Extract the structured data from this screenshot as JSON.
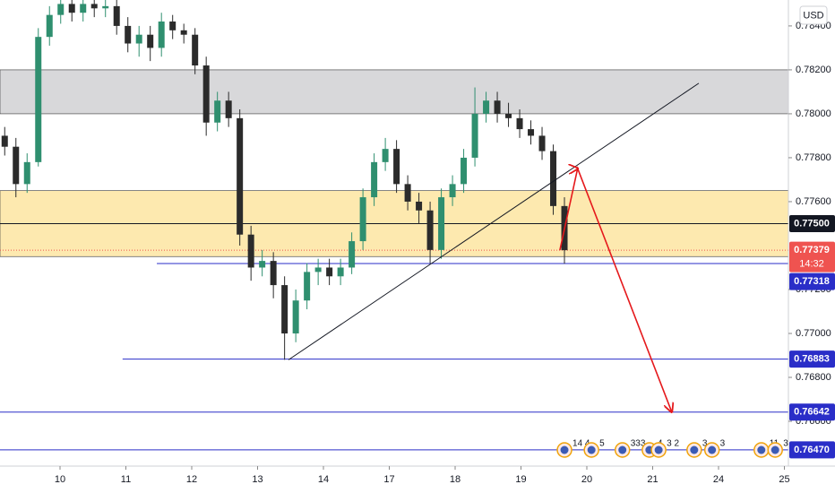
{
  "chart_data": {
    "type": "candlestick",
    "currency": "USD",
    "up_color": "#2f8f6f",
    "down_color": "#2b2b2b",
    "xlim": [
      -0.9116,
      11.061
    ],
    "ylim": [
      0.76396,
      0.78518
    ],
    "xticks": [
      {
        "value": 0,
        "label": "10"
      },
      {
        "value": 1,
        "label": "11"
      },
      {
        "value": 2,
        "label": "12"
      },
      {
        "value": 3,
        "label": "13"
      },
      {
        "value": 4,
        "label": "14"
      },
      {
        "value": 5,
        "label": "17"
      },
      {
        "value": 6,
        "label": "18"
      },
      {
        "value": 7,
        "label": "19"
      },
      {
        "value": 8,
        "label": "20"
      },
      {
        "value": 9,
        "label": "21"
      },
      {
        "value": 10,
        "label": "24"
      },
      {
        "value": 11,
        "label": "25"
      }
    ],
    "yticks": [
      {
        "value": 0.784,
        "label": "0.78400"
      },
      {
        "value": 0.782,
        "label": "0.78200"
      },
      {
        "value": 0.78,
        "label": "0.78000"
      },
      {
        "value": 0.778,
        "label": "0.77800"
      },
      {
        "value": 0.776,
        "label": "0.77600"
      },
      {
        "value": 0.772,
        "label": "0.77200"
      },
      {
        "value": 0.77,
        "label": "0.77000"
      },
      {
        "value": 0.768,
        "label": "0.76800"
      },
      {
        "value": 0.766,
        "label": "0.76600"
      }
    ],
    "x": [
      -0.84,
      -0.67,
      -0.5,
      -0.33,
      -0.16,
      0.01,
      0.18,
      0.35,
      0.52,
      0.69,
      0.86,
      1.03,
      1.2,
      1.37,
      1.54,
      1.71,
      1.88,
      2.05,
      2.22,
      2.39,
      2.56,
      2.73,
      2.9,
      3.07,
      3.24,
      3.41,
      3.58,
      3.75,
      3.92,
      4.09,
      4.26,
      4.43,
      4.6,
      4.77,
      4.94,
      5.11,
      5.28,
      5.45,
      5.62,
      5.79,
      5.96,
      6.13,
      6.3,
      6.47,
      6.64,
      6.81,
      6.98,
      7.15,
      7.32,
      7.49,
      7.66
    ],
    "open": [
      0.779,
      0.7785,
      0.7768,
      0.7778,
      0.7835,
      0.7845,
      0.785,
      0.7846,
      0.785,
      0.7848,
      0.7849,
      0.784,
      0.7832,
      0.7836,
      0.783,
      0.7842,
      0.7838,
      0.7836,
      0.7822,
      0.7796,
      0.7806,
      0.7798,
      0.7745,
      0.773,
      0.7733,
      0.7722,
      0.77,
      0.7715,
      0.7728,
      0.773,
      0.7726,
      0.773,
      0.7742,
      0.7762,
      0.7778,
      0.7784,
      0.7768,
      0.776,
      0.7756,
      0.7738,
      0.7762,
      0.7768,
      0.778,
      0.78,
      0.7806,
      0.78,
      0.7798,
      0.7793,
      0.779,
      0.7783,
      0.7758
    ],
    "high": [
      0.7794,
      0.7789,
      0.7782,
      0.7839,
      0.7849,
      0.7854,
      0.7854,
      0.7854,
      0.7853,
      0.7852,
      0.7852,
      0.7844,
      0.784,
      0.784,
      0.7846,
      0.7845,
      0.7841,
      0.7839,
      0.7826,
      0.781,
      0.781,
      0.7802,
      0.7749,
      0.7738,
      0.7737,
      0.7726,
      0.772,
      0.7732,
      0.7734,
      0.7734,
      0.7734,
      0.7746,
      0.7766,
      0.7782,
      0.7789,
      0.7788,
      0.7772,
      0.7764,
      0.776,
      0.7766,
      0.7772,
      0.7784,
      0.7812,
      0.781,
      0.781,
      0.7805,
      0.7802,
      0.7797,
      0.7794,
      0.7786,
      0.7762
    ],
    "low": [
      0.7781,
      0.7762,
      0.7764,
      0.7776,
      0.7831,
      0.7841,
      0.7842,
      0.7842,
      0.7844,
      0.7844,
      0.7836,
      0.7828,
      0.7826,
      0.7824,
      0.7826,
      0.7834,
      0.7832,
      0.7818,
      0.779,
      0.7792,
      0.7794,
      0.774,
      0.7724,
      0.7726,
      0.7716,
      0.7688,
      0.7696,
      0.7711,
      0.7722,
      0.7722,
      0.7722,
      0.7727,
      0.7738,
      0.7758,
      0.7774,
      0.7764,
      0.7756,
      0.775,
      0.7732,
      0.7734,
      0.7758,
      0.7764,
      0.7776,
      0.7796,
      0.7796,
      0.7794,
      0.7789,
      0.7786,
      0.7779,
      0.7754,
      0.77318
    ],
    "close": [
      0.7785,
      0.7768,
      0.7778,
      0.7835,
      0.7845,
      0.785,
      0.7846,
      0.785,
      0.7848,
      0.7849,
      0.784,
      0.7832,
      0.7836,
      0.783,
      0.7842,
      0.7838,
      0.7836,
      0.7822,
      0.7796,
      0.7806,
      0.7798,
      0.7745,
      0.773,
      0.7733,
      0.7722,
      0.77,
      0.7715,
      0.7728,
      0.773,
      0.7726,
      0.773,
      0.7742,
      0.7762,
      0.7778,
      0.7784,
      0.7768,
      0.776,
      0.7756,
      0.7738,
      0.7762,
      0.7768,
      0.778,
      0.78,
      0.7806,
      0.78,
      0.7798,
      0.7793,
      0.779,
      0.7783,
      0.7758,
      0.77379
    ],
    "zones": [
      {
        "from": 0.78,
        "to": 0.782,
        "color": "#d4d4d6"
      },
      {
        "from": 0.7735,
        "to": 0.7765,
        "color": "#fde7a6"
      }
    ],
    "levels": [
      {
        "value": 0.775,
        "label": "0.77500",
        "color": "#131722"
      },
      {
        "value": 0.77379,
        "label": "0.77379",
        "color": "#ef5350",
        "countdown": "14:32"
      },
      {
        "value": 0.77318,
        "label": "0.77318",
        "color": "#2a2ec8",
        "from": 1.47
      },
      {
        "value": 0.76883,
        "label": "0.76883",
        "color": "#2a2ec8",
        "from": 0.95
      },
      {
        "value": 0.76642,
        "label": "0.76642",
        "color": "#2a2ec8"
      },
      {
        "value": 0.7647,
        "label": "0.76470",
        "color": "#2a2ec8"
      }
    ],
    "trendline": {
      "x": [
        3.47,
        9.7
      ],
      "y": [
        0.7688,
        0.78139
      ],
      "color": "#131722"
    },
    "arrow": {
      "x": [
        7.59,
        7.86,
        9.29
      ],
      "y": [
        0.77379,
        0.77751,
        0.76642
      ],
      "color": "#e5191c"
    },
    "events": [
      {
        "x": 7.66,
        "label": "14 4"
      },
      {
        "x": 8.07,
        "label": "5"
      },
      {
        "x": 8.54,
        "label": "333"
      },
      {
        "x": 8.95,
        "label": "4"
      },
      {
        "x": 9.09,
        "label": "3 2"
      },
      {
        "x": 9.63,
        "label": "3"
      },
      {
        "x": 9.9,
        "label": "3"
      },
      {
        "x": 10.65,
        "label": "11"
      },
      {
        "x": 10.86,
        "label": "3"
      }
    ]
  }
}
